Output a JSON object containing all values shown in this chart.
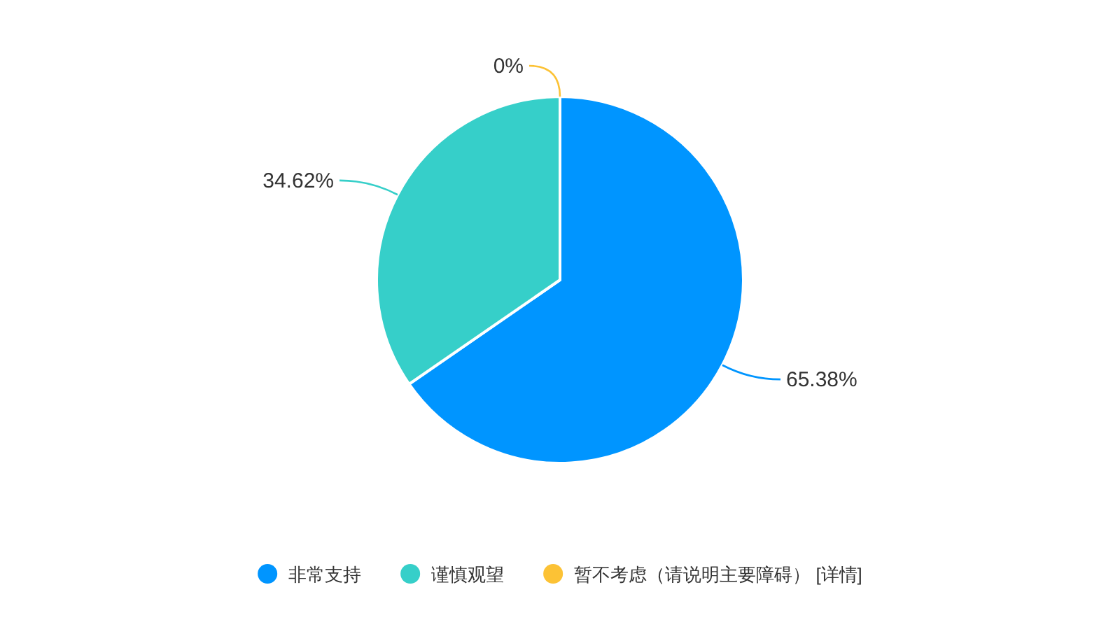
{
  "chart_data": {
    "type": "pie",
    "categories": [
      "非常支持",
      "谨慎观望",
      "暂不考虑（请说明主要障碍） [详情]"
    ],
    "values": [
      65.38,
      34.62,
      0
    ],
    "colors": [
      "#0095ff",
      "#36cfc9",
      "#fcc235"
    ],
    "value_labels": [
      "65.38%",
      "34.62%",
      "0%"
    ],
    "legend": "bottom"
  }
}
